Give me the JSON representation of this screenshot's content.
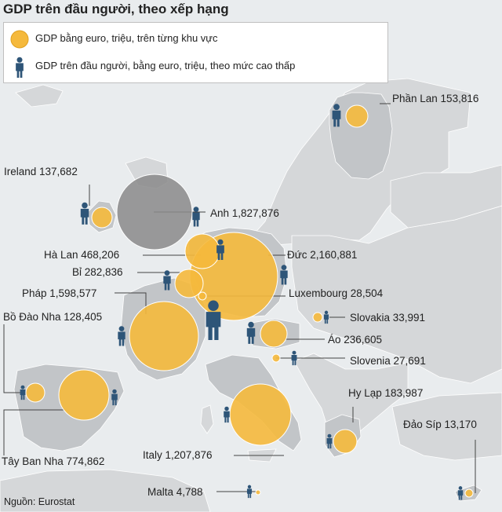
{
  "title": "GDP trên đầu người, theo xếp hạng",
  "legend": {
    "gdp_total": "GDP bằng euro, triệu, trên từng khu vực",
    "gdp_per_capita": "GDP trên đầu người, bằng euro, triệu, theo mức cao thấp"
  },
  "countries": {
    "finland": "Phần Lan 153,816",
    "ireland": "Ireland 137,682",
    "uk": "Anh 1,827,876",
    "netherlands": "Hà Lan 468,206",
    "germany": "Đức 2,160,881",
    "belgium": "Bỉ 282,836",
    "luxembourg": "Luxembourg 28,504",
    "france": "Pháp 1,598,577",
    "portugal": "Bồ Đào Nha 128,405",
    "slovakia": "Slovakia 33,991",
    "austria": "Áo 236,605",
    "slovenia": "Slovenia 27,691",
    "greece": "Hy Lạp 183,987",
    "cyprus": "Đảo Síp 13,170",
    "spain": "Tây Ban Nha 774,862",
    "italy": "Italy 1,207,876",
    "malta": "Malta 4,788"
  },
  "source": "Nguồn: Eurostat",
  "colors": {
    "ocean": "#e9ecee",
    "land": "#d5d7d9",
    "euro_land": "#c2c5c8",
    "bubble": "#f5b93c",
    "uk_bubble": "#8a8a8a",
    "person": "#2e5578",
    "leader": "#444444"
  }
}
